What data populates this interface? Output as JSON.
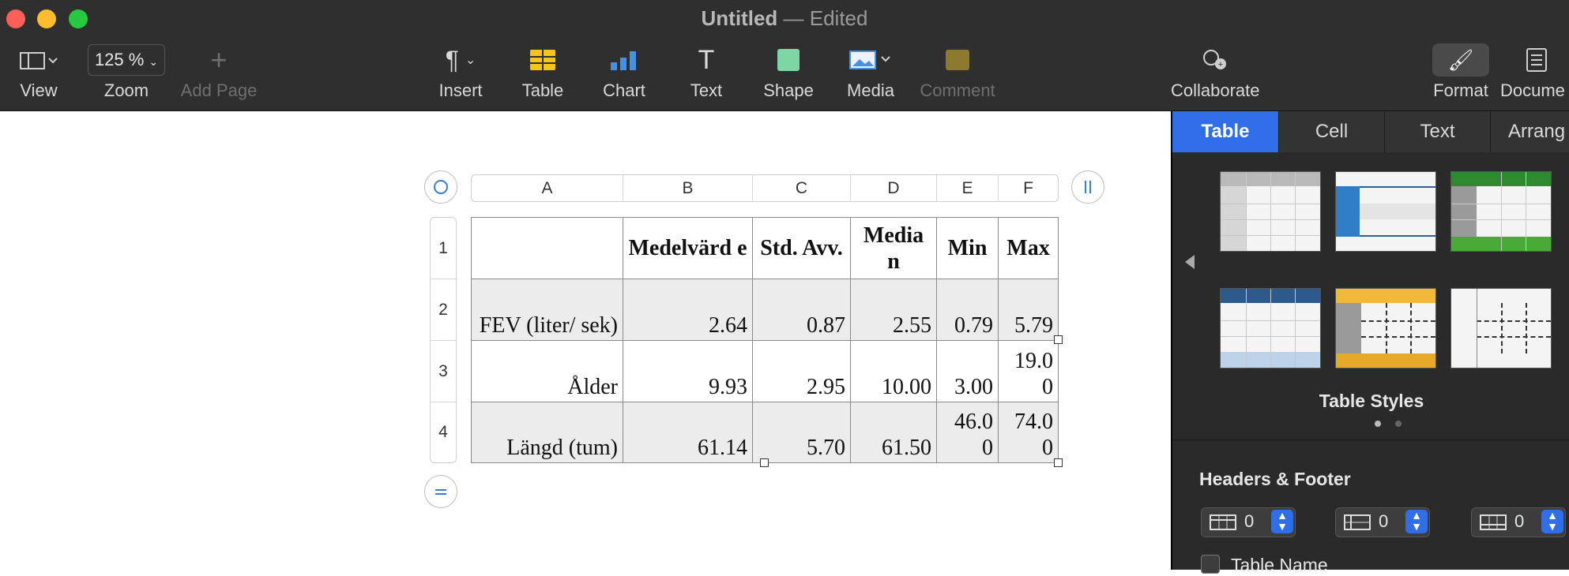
{
  "window": {
    "title": "Untitled",
    "separator": "—",
    "status": "Edited"
  },
  "toolbar": {
    "view": "View",
    "zoom_value": "125 %",
    "zoom": "Zoom",
    "add_page": "Add Page",
    "insert": "Insert",
    "table": "Table",
    "chart": "Chart",
    "text": "Text",
    "shape": "Shape",
    "media": "Media",
    "comment": "Comment",
    "collaborate": "Collaborate",
    "format": "Format",
    "document": "Docume"
  },
  "table": {
    "columns": [
      "A",
      "B",
      "C",
      "D",
      "E",
      "F"
    ],
    "rows": [
      "1",
      "2",
      "3",
      "4"
    ],
    "header": [
      "",
      "Medelvärd e",
      "Std. Avv.",
      "Media n",
      "Min",
      "Max"
    ],
    "data": [
      [
        "FEV (liter/ sek)",
        "2.64",
        "0.87",
        "2.55",
        "0.79",
        "5.79"
      ],
      [
        "Ålder",
        "9.93",
        "2.95",
        "10.00",
        "3.00",
        "19.0 0"
      ],
      [
        "Längd (tum)",
        "61.14",
        "5.70",
        "61.50",
        "46.0 0",
        "74.0 0"
      ]
    ]
  },
  "sidebar": {
    "tabs": [
      "Table",
      "Cell",
      "Text",
      "Arrang"
    ],
    "table_styles": "Table Styles",
    "headers_footer": "Headers & Footer",
    "header_rows": "0",
    "header_cols": "0",
    "footer_rows": "0",
    "table_name": "Table Name"
  },
  "colors": {
    "accent": "#2f6ee6",
    "toolbar_bg": "#2f2f2f",
    "sidebar_bg": "#2a2a2a"
  }
}
